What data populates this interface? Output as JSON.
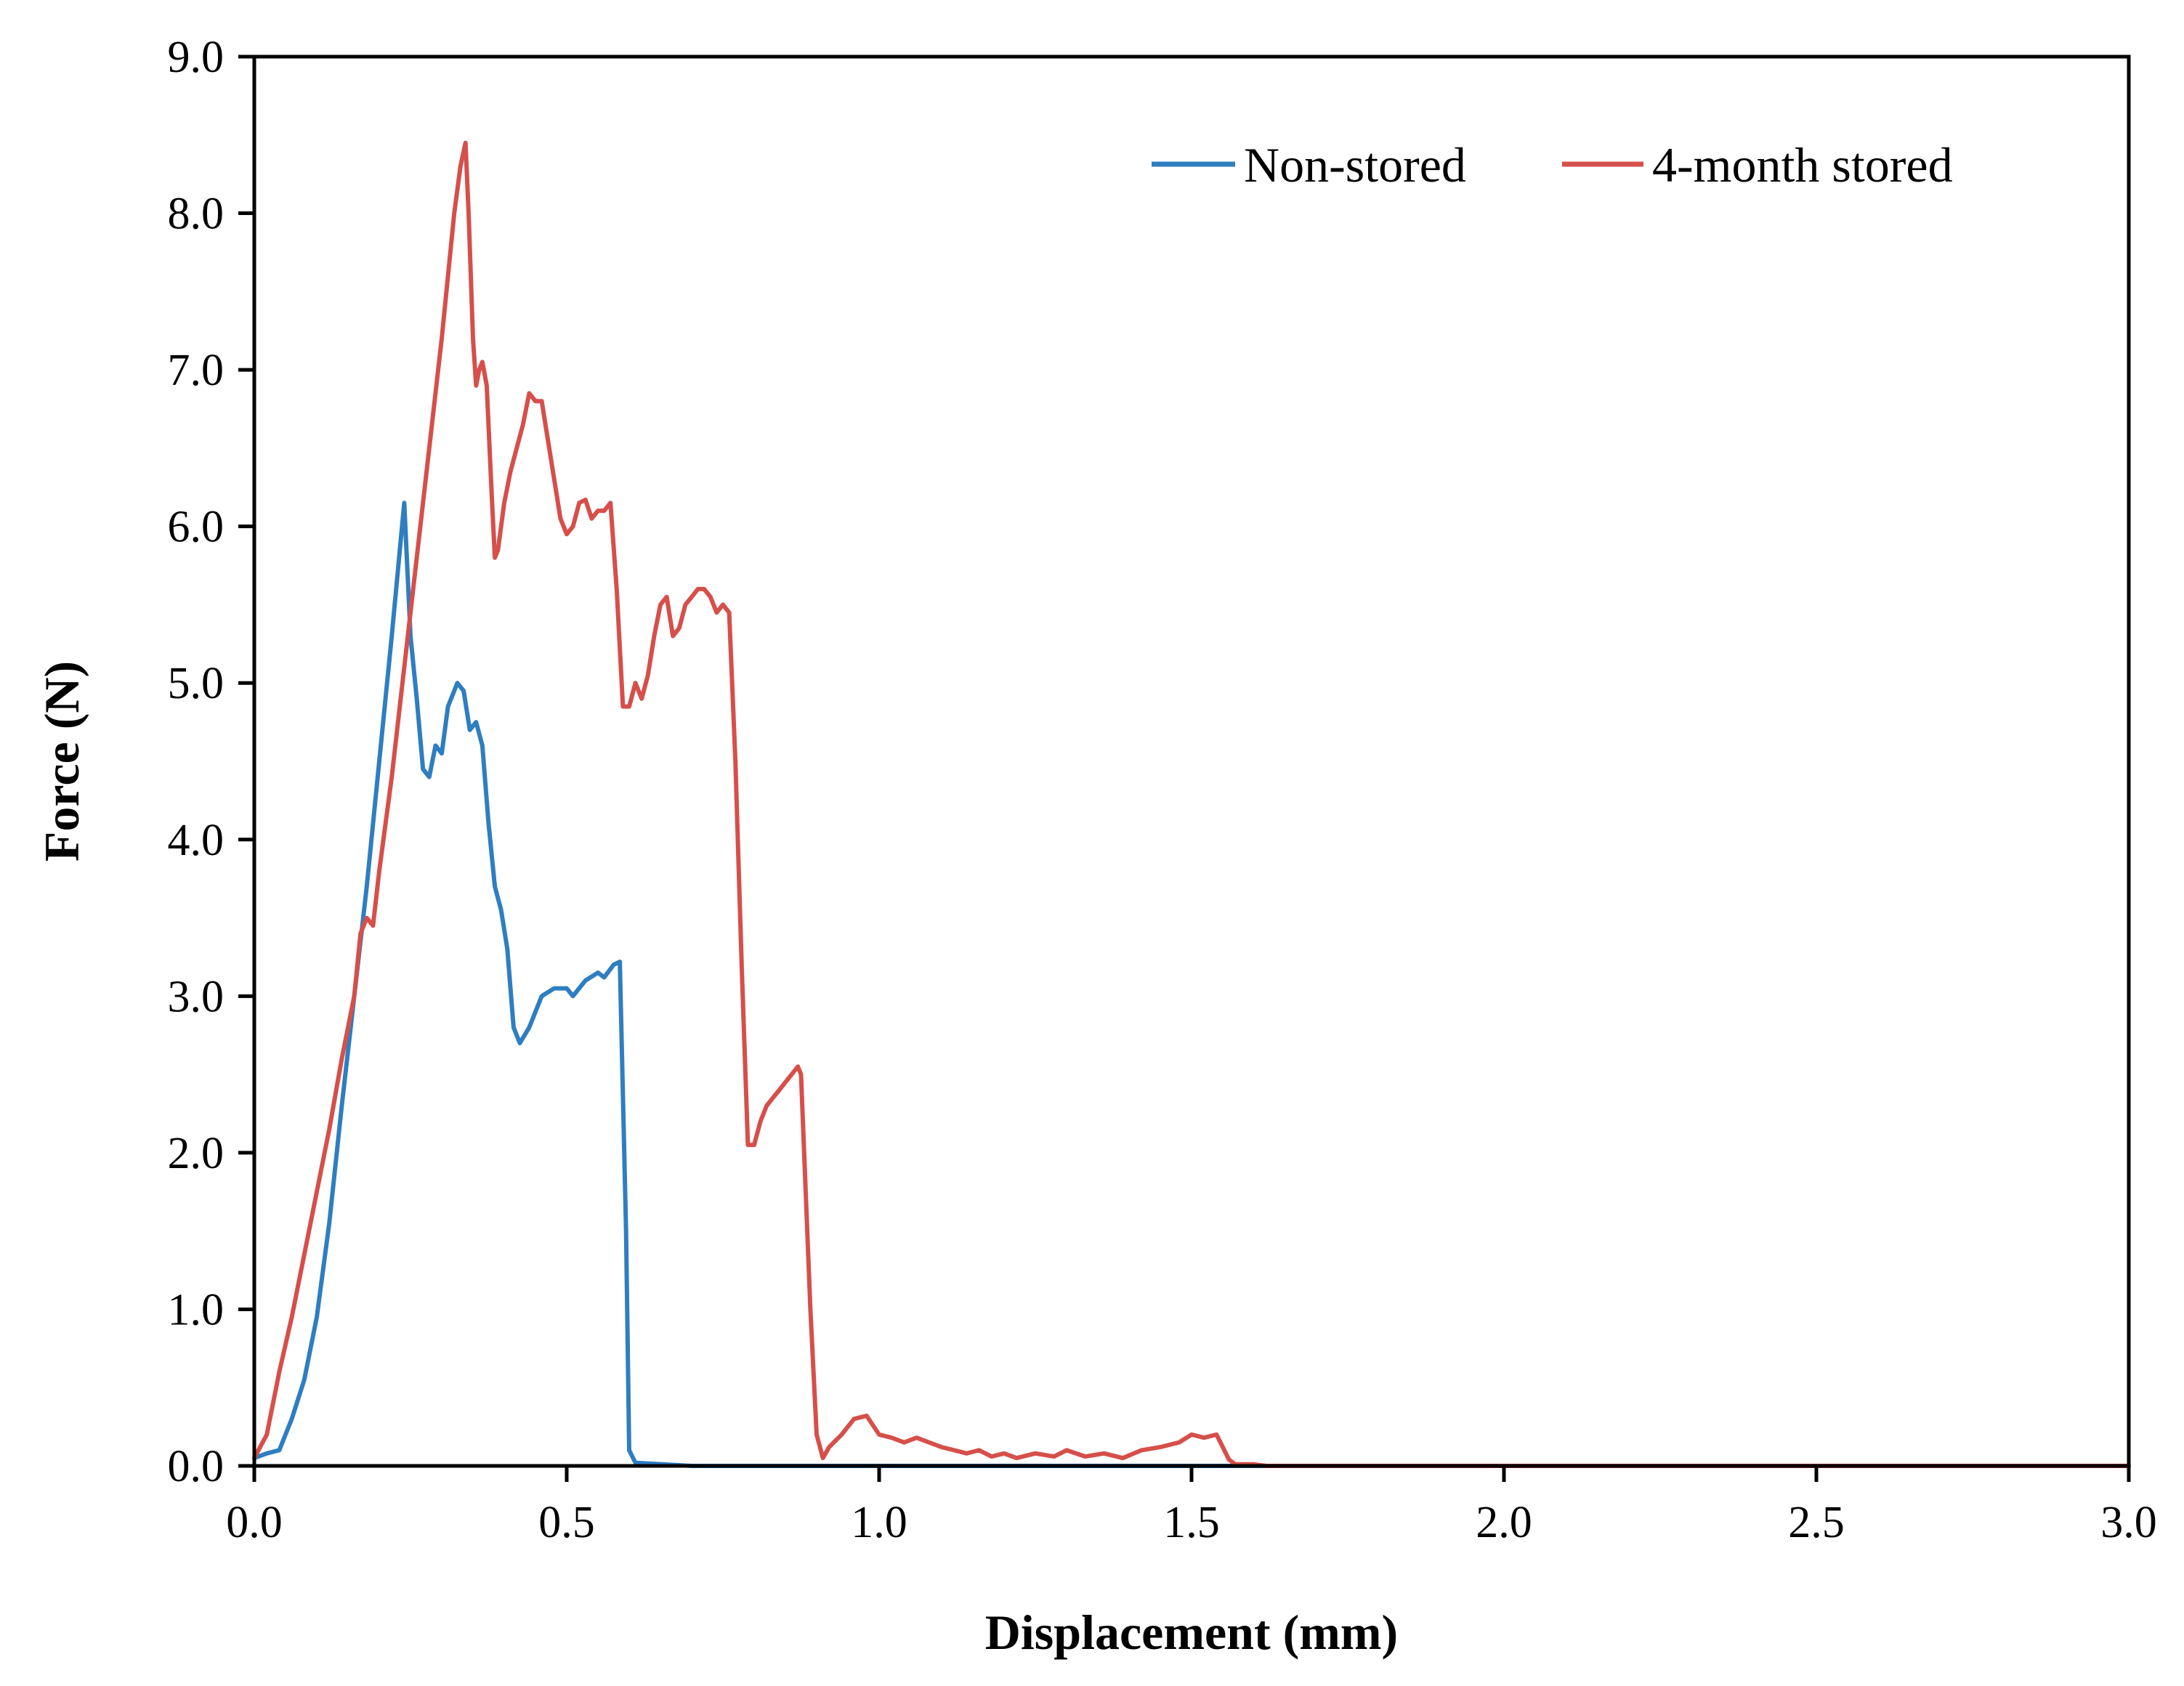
{
  "chart_data": {
    "type": "line",
    "title": "",
    "xlabel": "Displacement (mm)",
    "ylabel": "Force (N)",
    "xlim": [
      0,
      3.0
    ],
    "ylim": [
      0,
      9.0
    ],
    "x_ticks": [
      "0.0",
      "0.5",
      "1.0",
      "1.5",
      "2.0",
      "2.5",
      "3.0"
    ],
    "x_tick_values": [
      0,
      0.5,
      1.0,
      1.5,
      2.0,
      2.5,
      3.0
    ],
    "y_ticks": [
      "0.0",
      "1.0",
      "2.0",
      "3.0",
      "4.0",
      "5.0",
      "6.0",
      "7.0",
      "8.0",
      "9.0"
    ],
    "y_tick_values": [
      0,
      1,
      2,
      3,
      4,
      5,
      6,
      7,
      8,
      9
    ],
    "grid": false,
    "legend_position": "top-right",
    "series": [
      {
        "name": "Non-stored",
        "color": "#2e7ec1",
        "points": [
          [
            0.0,
            0.05
          ],
          [
            0.02,
            0.08
          ],
          [
            0.04,
            0.1
          ],
          [
            0.06,
            0.3
          ],
          [
            0.08,
            0.55
          ],
          [
            0.1,
            0.95
          ],
          [
            0.12,
            1.55
          ],
          [
            0.14,
            2.3
          ],
          [
            0.16,
            3.0
          ],
          [
            0.18,
            3.7
          ],
          [
            0.2,
            4.5
          ],
          [
            0.22,
            5.3
          ],
          [
            0.24,
            6.15
          ],
          [
            0.25,
            5.3
          ],
          [
            0.26,
            4.9
          ],
          [
            0.27,
            4.45
          ],
          [
            0.28,
            4.4
          ],
          [
            0.29,
            4.6
          ],
          [
            0.3,
            4.55
          ],
          [
            0.31,
            4.85
          ],
          [
            0.325,
            5.0
          ],
          [
            0.335,
            4.95
          ],
          [
            0.345,
            4.7
          ],
          [
            0.355,
            4.75
          ],
          [
            0.365,
            4.6
          ],
          [
            0.375,
            4.1
          ],
          [
            0.385,
            3.7
          ],
          [
            0.395,
            3.55
          ],
          [
            0.405,
            3.3
          ],
          [
            0.415,
            2.8
          ],
          [
            0.425,
            2.7
          ],
          [
            0.44,
            2.8
          ],
          [
            0.46,
            3.0
          ],
          [
            0.48,
            3.05
          ],
          [
            0.5,
            3.05
          ],
          [
            0.51,
            3.0
          ],
          [
            0.53,
            3.1
          ],
          [
            0.55,
            3.15
          ],
          [
            0.56,
            3.12
          ],
          [
            0.575,
            3.2
          ],
          [
            0.585,
            3.22
          ],
          [
            0.595,
            1.5
          ],
          [
            0.6,
            0.1
          ],
          [
            0.61,
            0.02
          ],
          [
            0.7,
            0.0
          ],
          [
            1.0,
            0.0
          ],
          [
            1.5,
            0.0
          ],
          [
            2.0,
            0.0
          ],
          [
            2.5,
            0.0
          ],
          [
            3.0,
            0.0
          ]
        ]
      },
      {
        "name": "4-month stored",
        "color": "#d64f4a",
        "points": [
          [
            0.0,
            0.05
          ],
          [
            0.02,
            0.2
          ],
          [
            0.04,
            0.6
          ],
          [
            0.06,
            0.95
          ],
          [
            0.08,
            1.35
          ],
          [
            0.1,
            1.75
          ],
          [
            0.12,
            2.15
          ],
          [
            0.14,
            2.6
          ],
          [
            0.16,
            3.0
          ],
          [
            0.17,
            3.4
          ],
          [
            0.18,
            3.5
          ],
          [
            0.19,
            3.45
          ],
          [
            0.2,
            3.8
          ],
          [
            0.22,
            4.4
          ],
          [
            0.24,
            5.1
          ],
          [
            0.26,
            5.8
          ],
          [
            0.28,
            6.5
          ],
          [
            0.3,
            7.2
          ],
          [
            0.31,
            7.6
          ],
          [
            0.32,
            8.0
          ],
          [
            0.33,
            8.3
          ],
          [
            0.338,
            8.45
          ],
          [
            0.343,
            8.0
          ],
          [
            0.35,
            7.2
          ],
          [
            0.355,
            6.9
          ],
          [
            0.36,
            7.0
          ],
          [
            0.365,
            7.05
          ],
          [
            0.372,
            6.9
          ],
          [
            0.38,
            6.2
          ],
          [
            0.385,
            5.8
          ],
          [
            0.39,
            5.85
          ],
          [
            0.4,
            6.15
          ],
          [
            0.41,
            6.35
          ],
          [
            0.42,
            6.5
          ],
          [
            0.43,
            6.65
          ],
          [
            0.44,
            6.85
          ],
          [
            0.45,
            6.8
          ],
          [
            0.46,
            6.8
          ],
          [
            0.47,
            6.55
          ],
          [
            0.48,
            6.3
          ],
          [
            0.49,
            6.05
          ],
          [
            0.5,
            5.95
          ],
          [
            0.51,
            6.0
          ],
          [
            0.52,
            6.15
          ],
          [
            0.53,
            6.17
          ],
          [
            0.54,
            6.05
          ],
          [
            0.55,
            6.1
          ],
          [
            0.56,
            6.1
          ],
          [
            0.57,
            6.15
          ],
          [
            0.58,
            5.6
          ],
          [
            0.59,
            4.85
          ],
          [
            0.6,
            4.85
          ],
          [
            0.61,
            5.0
          ],
          [
            0.62,
            4.9
          ],
          [
            0.63,
            5.05
          ],
          [
            0.64,
            5.3
          ],
          [
            0.65,
            5.5
          ],
          [
            0.66,
            5.55
          ],
          [
            0.67,
            5.3
          ],
          [
            0.68,
            5.35
          ],
          [
            0.69,
            5.5
          ],
          [
            0.7,
            5.55
          ],
          [
            0.71,
            5.6
          ],
          [
            0.72,
            5.6
          ],
          [
            0.73,
            5.55
          ],
          [
            0.74,
            5.45
          ],
          [
            0.75,
            5.5
          ],
          [
            0.76,
            5.45
          ],
          [
            0.77,
            4.5
          ],
          [
            0.78,
            3.2
          ],
          [
            0.79,
            2.05
          ],
          [
            0.8,
            2.05
          ],
          [
            0.81,
            2.2
          ],
          [
            0.82,
            2.3
          ],
          [
            0.83,
            2.35
          ],
          [
            0.84,
            2.4
          ],
          [
            0.85,
            2.45
          ],
          [
            0.86,
            2.5
          ],
          [
            0.87,
            2.55
          ],
          [
            0.875,
            2.5
          ],
          [
            0.88,
            2.0
          ],
          [
            0.89,
            1.0
          ],
          [
            0.9,
            0.2
          ],
          [
            0.91,
            0.05
          ],
          [
            0.92,
            0.12
          ],
          [
            0.94,
            0.2
          ],
          [
            0.96,
            0.3
          ],
          [
            0.98,
            0.32
          ],
          [
            1.0,
            0.2
          ],
          [
            1.02,
            0.18
          ],
          [
            1.04,
            0.15
          ],
          [
            1.06,
            0.18
          ],
          [
            1.08,
            0.15
          ],
          [
            1.1,
            0.12
          ],
          [
            1.12,
            0.1
          ],
          [
            1.14,
            0.08
          ],
          [
            1.16,
            0.1
          ],
          [
            1.18,
            0.06
          ],
          [
            1.2,
            0.08
          ],
          [
            1.22,
            0.05
          ],
          [
            1.25,
            0.08
          ],
          [
            1.28,
            0.06
          ],
          [
            1.3,
            0.1
          ],
          [
            1.33,
            0.06
          ],
          [
            1.36,
            0.08
          ],
          [
            1.39,
            0.05
          ],
          [
            1.42,
            0.1
          ],
          [
            1.45,
            0.12
          ],
          [
            1.48,
            0.15
          ],
          [
            1.5,
            0.2
          ],
          [
            1.52,
            0.18
          ],
          [
            1.54,
            0.2
          ],
          [
            1.55,
            0.12
          ],
          [
            1.56,
            0.04
          ],
          [
            1.57,
            0.01
          ],
          [
            1.6,
            0.01
          ],
          [
            1.62,
            0.0
          ],
          [
            2.0,
            0.0
          ],
          [
            2.5,
            0.0
          ],
          [
            3.0,
            0.0
          ]
        ]
      }
    ]
  }
}
